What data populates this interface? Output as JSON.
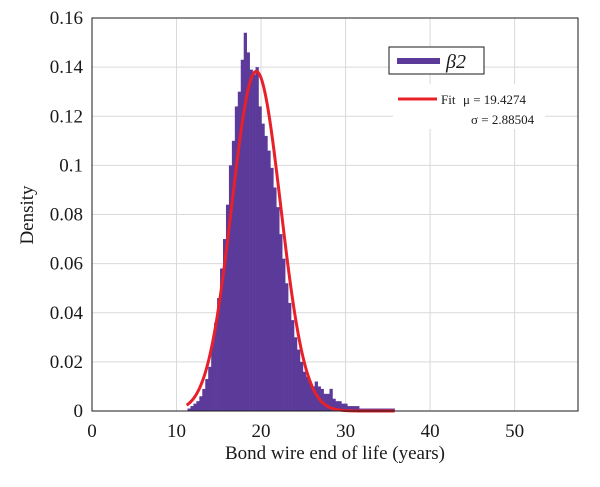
{
  "chart_data": {
    "type": "bar",
    "xlabel": "Bond wire end of life (years)",
    "ylabel": "Density",
    "xlim": [
      0,
      57.5
    ],
    "ylim": [
      0,
      0.16
    ],
    "xticks": [
      0,
      10,
      20,
      30,
      40,
      50
    ],
    "yticks": [
      0,
      0.02,
      0.04,
      0.06,
      0.08,
      0.1,
      0.12,
      0.14,
      0.16
    ],
    "ytick_labels": [
      "0",
      "0.02",
      "0.04",
      "0.06",
      "0.08",
      "0.1",
      "0.12",
      "0.14",
      "0.16"
    ],
    "grid": true,
    "legend_position": "top-right",
    "colors": {
      "histogram": "#5b3a9a",
      "fit": "#e8202a"
    },
    "histogram": {
      "name": "β2",
      "bin_width": 0.35,
      "x": [
        11.3,
        11.65,
        12.0,
        12.35,
        12.7,
        13.05,
        13.4,
        13.75,
        14.1,
        14.45,
        14.8,
        15.15,
        15.5,
        15.85,
        16.2,
        16.55,
        16.9,
        17.25,
        17.6,
        17.95,
        18.3,
        18.65,
        19.0,
        19.35,
        19.7,
        20.05,
        20.4,
        20.75,
        21.1,
        21.45,
        21.8,
        22.15,
        22.5,
        22.85,
        23.2,
        23.55,
        23.9,
        24.25,
        24.6,
        24.95,
        25.3,
        25.65,
        26.0,
        26.35,
        26.7,
        27.05,
        27.4,
        27.75,
        28.1,
        28.45,
        28.8,
        29.15,
        29.5,
        29.85,
        30.2,
        30.55,
        30.9,
        31.25,
        31.6,
        31.95,
        32.3,
        32.65,
        33.0,
        33.35,
        33.7,
        34.05,
        34.4,
        34.75,
        35.1,
        35.45
      ],
      "values": [
        0.001,
        0.002,
        0.003,
        0.004,
        0.006,
        0.009,
        0.013,
        0.018,
        0.028,
        0.036,
        0.046,
        0.058,
        0.07,
        0.084,
        0.1,
        0.11,
        0.124,
        0.13,
        0.143,
        0.154,
        0.146,
        0.139,
        0.137,
        0.14,
        0.124,
        0.117,
        0.112,
        0.106,
        0.099,
        0.091,
        0.083,
        0.072,
        0.062,
        0.052,
        0.044,
        0.037,
        0.03,
        0.025,
        0.02,
        0.016,
        0.014,
        0.012,
        0.01,
        0.012,
        0.01,
        0.009,
        0.007,
        0.007,
        0.009,
        0.005,
        0.004,
        0.004,
        0.003,
        0.003,
        0.002,
        0.002,
        0.002,
        0.002,
        0.001,
        0.001,
        0.001,
        0.001,
        0.001,
        0.001,
        0.001,
        0.001,
        0.001,
        0.001,
        0.001,
        0.001
      ]
    },
    "fit": {
      "name": "Fit",
      "mu": 19.4274,
      "sigma": 2.88504,
      "x_range": [
        11.2,
        35.8
      ]
    }
  },
  "legend": {
    "hist_label": "β2",
    "fit_label": "Fit",
    "mu_text": "μ = 19.4274",
    "sigma_text": "σ = 2.88504"
  }
}
